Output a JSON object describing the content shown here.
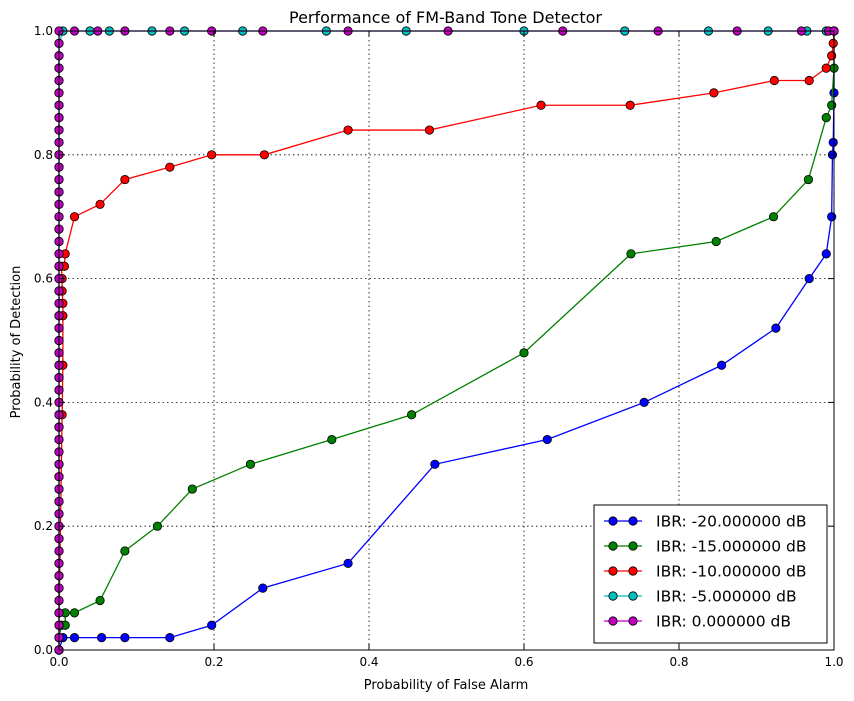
{
  "chart_data": {
    "type": "line",
    "title": "Performance of FM-Band Tone Detector",
    "xlabel": "Probability of False Alarm",
    "ylabel": "Probability of Detection",
    "xlim": [
      0,
      1
    ],
    "ylim": [
      0,
      1
    ],
    "xticks": [
      "0.0",
      "0.2",
      "0.4",
      "0.6",
      "0.8",
      "1.0"
    ],
    "yticks": [
      "0.0",
      "0.2",
      "0.4",
      "0.6",
      "0.8",
      "1.0"
    ],
    "grid": true,
    "legend_position": "lower-right",
    "series": [
      {
        "name": "IBR: -20.000000 dB",
        "color": "#0000ff",
        "points": [
          [
            0,
            0
          ],
          [
            0.005,
            0.02
          ],
          [
            0.02,
            0.02
          ],
          [
            0.055,
            0.02
          ],
          [
            0.085,
            0.02
          ],
          [
            0.143,
            0.02
          ],
          [
            0.197,
            0.04
          ],
          [
            0.263,
            0.1
          ],
          [
            0.373,
            0.14
          ],
          [
            0.485,
            0.3
          ],
          [
            0.63,
            0.34
          ],
          [
            0.755,
            0.4
          ],
          [
            0.855,
            0.46
          ],
          [
            0.925,
            0.52
          ],
          [
            0.968,
            0.6
          ],
          [
            0.99,
            0.64
          ],
          [
            0.997,
            0.7
          ],
          [
            0.998,
            0.8
          ],
          [
            0.999,
            0.82
          ],
          [
            1.0,
            0.9
          ],
          [
            1.0,
            1.0
          ]
        ]
      },
      {
        "name": "IBR: -15.000000 dB",
        "color": "#008000",
        "points": [
          [
            0,
            0
          ],
          [
            0,
            0.02
          ],
          [
            0.003,
            0.04
          ],
          [
            0.008,
            0.04
          ],
          [
            0.008,
            0.06
          ],
          [
            0.02,
            0.06
          ],
          [
            0.053,
            0.08
          ],
          [
            0.085,
            0.16
          ],
          [
            0.127,
            0.2
          ],
          [
            0.172,
            0.26
          ],
          [
            0.247,
            0.3
          ],
          [
            0.352,
            0.34
          ],
          [
            0.455,
            0.38
          ],
          [
            0.6,
            0.48
          ],
          [
            0.738,
            0.64
          ],
          [
            0.848,
            0.66
          ],
          [
            0.922,
            0.7
          ],
          [
            0.967,
            0.76
          ],
          [
            0.99,
            0.86
          ],
          [
            0.997,
            0.88
          ],
          [
            1.0,
            0.94
          ],
          [
            1.0,
            1.0
          ]
        ]
      },
      {
        "name": "IBR: -10.000000 dB",
        "color": "#ff0000",
        "points": [
          [
            0,
            0
          ],
          [
            0,
            0.04
          ],
          [
            0.004,
            0.38
          ],
          [
            0.005,
            0.46
          ],
          [
            0.005,
            0.54
          ],
          [
            0.005,
            0.56
          ],
          [
            0.004,
            0.58
          ],
          [
            0.004,
            0.6
          ],
          [
            0.003,
            0.62
          ],
          [
            0.007,
            0.62
          ],
          [
            0.008,
            0.64
          ],
          [
            0.02,
            0.7
          ],
          [
            0.053,
            0.72
          ],
          [
            0.085,
            0.76
          ],
          [
            0.143,
            0.78
          ],
          [
            0.197,
            0.8
          ],
          [
            0.265,
            0.8
          ],
          [
            0.373,
            0.84
          ],
          [
            0.478,
            0.84
          ],
          [
            0.622,
            0.88
          ],
          [
            0.737,
            0.88
          ],
          [
            0.845,
            0.9
          ],
          [
            0.923,
            0.92
          ],
          [
            0.968,
            0.92
          ],
          [
            0.99,
            0.94
          ],
          [
            0.997,
            0.96
          ],
          [
            0.999,
            0.98
          ],
          [
            1.0,
            1.0
          ]
        ]
      },
      {
        "name": "IBR: -5.000000 dB",
        "color": "#00bfbf",
        "points": [
          [
            0,
            0
          ],
          [
            0,
            0.02
          ],
          [
            0,
            0.06
          ],
          [
            0,
            0.08
          ],
          [
            0,
            0.1
          ],
          [
            0,
            0.12
          ],
          [
            0,
            0.14
          ],
          [
            0,
            0.16
          ],
          [
            0,
            0.18
          ],
          [
            0,
            0.2
          ],
          [
            0,
            0.22
          ],
          [
            0,
            0.24
          ],
          [
            0,
            0.26
          ],
          [
            0,
            0.28
          ],
          [
            0,
            0.3
          ],
          [
            0,
            0.32
          ],
          [
            0,
            0.34
          ],
          [
            0,
            0.36
          ],
          [
            0,
            0.38
          ],
          [
            0,
            0.4
          ],
          [
            0,
            0.42
          ],
          [
            0,
            0.44
          ],
          [
            0,
            0.46
          ],
          [
            0,
            0.48
          ],
          [
            0,
            0.5
          ],
          [
            0,
            0.52
          ],
          [
            0,
            0.54
          ],
          [
            0,
            0.56
          ],
          [
            0,
            0.58
          ],
          [
            0,
            0.6
          ],
          [
            0,
            0.62
          ],
          [
            0,
            0.64
          ],
          [
            0,
            0.66
          ],
          [
            0,
            0.68
          ],
          [
            0,
            0.7
          ],
          [
            0,
            0.72
          ],
          [
            0,
            0.74
          ],
          [
            0,
            0.76
          ],
          [
            0,
            0.78
          ],
          [
            0,
            0.8
          ],
          [
            0,
            0.82
          ],
          [
            0,
            0.84
          ],
          [
            0,
            0.86
          ],
          [
            0,
            0.88
          ],
          [
            0,
            0.9
          ],
          [
            0,
            0.92
          ],
          [
            0,
            0.94
          ],
          [
            0,
            0.96
          ],
          [
            0,
            0.98
          ],
          [
            0.005,
            1.0
          ],
          [
            0.04,
            1.0
          ],
          [
            0.065,
            1.0
          ],
          [
            0.12,
            1.0
          ],
          [
            0.162,
            1.0
          ],
          [
            0.237,
            1.0
          ],
          [
            0.345,
            1.0
          ],
          [
            0.448,
            1.0
          ],
          [
            0.6,
            1.0
          ],
          [
            0.73,
            1.0
          ],
          [
            0.838,
            1.0
          ],
          [
            0.915,
            1.0
          ],
          [
            0.965,
            1.0
          ],
          [
            0.99,
            1.0
          ],
          [
            1.0,
            1.0
          ]
        ]
      },
      {
        "name": "IBR: 0.000000 dB",
        "color": "#bf00bf",
        "points": [
          [
            0,
            0
          ],
          [
            0,
            0.02
          ],
          [
            0,
            0.04
          ],
          [
            0,
            0.06
          ],
          [
            0,
            0.08
          ],
          [
            0,
            0.1
          ],
          [
            0,
            0.12
          ],
          [
            0,
            0.14
          ],
          [
            0,
            0.16
          ],
          [
            0,
            0.18
          ],
          [
            0,
            0.2
          ],
          [
            0,
            0.22
          ],
          [
            0,
            0.24
          ],
          [
            0,
            0.26
          ],
          [
            0,
            0.28
          ],
          [
            0,
            0.3
          ],
          [
            0,
            0.32
          ],
          [
            0,
            0.34
          ],
          [
            0,
            0.36
          ],
          [
            0,
            0.38
          ],
          [
            0,
            0.4
          ],
          [
            0,
            0.42
          ],
          [
            0,
            0.44
          ],
          [
            0,
            0.46
          ],
          [
            0,
            0.48
          ],
          [
            0,
            0.5
          ],
          [
            0,
            0.52
          ],
          [
            0,
            0.54
          ],
          [
            0,
            0.56
          ],
          [
            0,
            0.58
          ],
          [
            0,
            0.6
          ],
          [
            0,
            0.62
          ],
          [
            0,
            0.64
          ],
          [
            0,
            0.66
          ],
          [
            0,
            0.68
          ],
          [
            0,
            0.7
          ],
          [
            0,
            0.72
          ],
          [
            0,
            0.74
          ],
          [
            0,
            0.76
          ],
          [
            0,
            0.78
          ],
          [
            0,
            0.8
          ],
          [
            0,
            0.82
          ],
          [
            0,
            0.84
          ],
          [
            0,
            0.86
          ],
          [
            0,
            0.88
          ],
          [
            0,
            0.9
          ],
          [
            0,
            0.92
          ],
          [
            0,
            0.94
          ],
          [
            0,
            0.96
          ],
          [
            0,
            0.98
          ],
          [
            0,
            1.0
          ],
          [
            0.02,
            1.0
          ],
          [
            0.05,
            1.0
          ],
          [
            0.085,
            1.0
          ],
          [
            0.143,
            1.0
          ],
          [
            0.197,
            1.0
          ],
          [
            0.263,
            1.0
          ],
          [
            0.373,
            1.0
          ],
          [
            0.502,
            1.0
          ],
          [
            0.65,
            1.0
          ],
          [
            0.773,
            1.0
          ],
          [
            0.875,
            1.0
          ],
          [
            0.958,
            1.0
          ],
          [
            0.993,
            1.0
          ],
          [
            1.0,
            1.0
          ]
        ]
      }
    ]
  }
}
